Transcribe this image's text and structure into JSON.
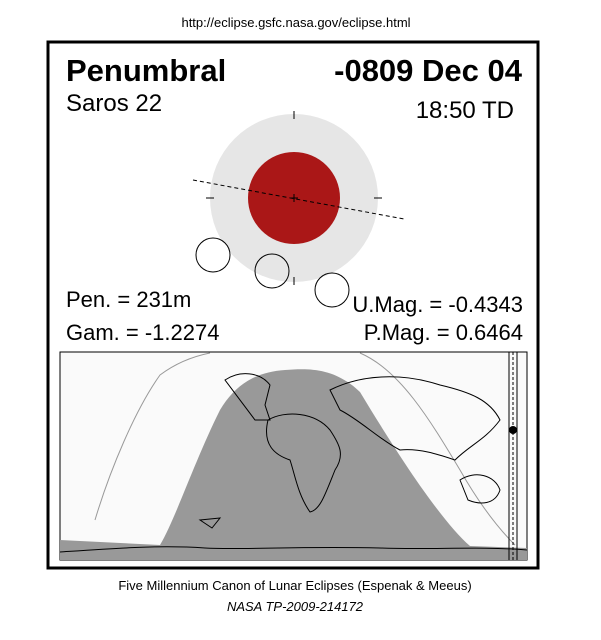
{
  "url": "http://eclipse.gsfc.nasa.gov/eclipse.html",
  "header": {
    "type": "Penumbral",
    "date": "-0809 Dec 04",
    "saros": "Saros  22",
    "time": "18:50 TD"
  },
  "stats": {
    "pen": "Pen. = 231m",
    "gam": "Gam. = -1.2274",
    "umag": "U.Mag. = -0.4343",
    "pmag": "P.Mag. = 0.6464"
  },
  "footer": {
    "canon": "Five Millennium Canon of Lunar Eclipses (Espenak & Meeus)",
    "ref": "NASA TP-2009-214172"
  }
}
